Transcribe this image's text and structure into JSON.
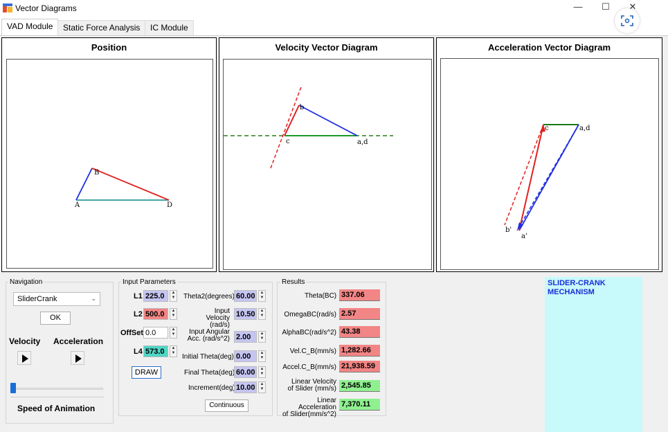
{
  "window": {
    "title": "Vector Diagrams",
    "minimize_glyph": "—",
    "maximize_glyph": "☐",
    "close_glyph": "✕"
  },
  "tabs": [
    {
      "label": "VAD Module",
      "active": true
    },
    {
      "label": "Static Force Analysis",
      "active": false
    },
    {
      "label": "IC Module",
      "active": false
    }
  ],
  "panels": {
    "position": {
      "title": "Position",
      "points": {
        "A": "A",
        "B": "B",
        "D": "D"
      }
    },
    "velocity": {
      "title": "Velocity Vector Diagram",
      "points": {
        "b": "b",
        "c": "c",
        "ad": "a,d"
      }
    },
    "acceleration": {
      "title": "Acceleration Vector Diagram",
      "points": {
        "c": "c",
        "ad": "a,d",
        "bp": "b'",
        "ap": "a'"
      }
    }
  },
  "navigation": {
    "label": "Navigation",
    "mechanism_selected": "SliderCrank",
    "ok_label": "OK",
    "velocity_label": "Velocity",
    "acceleration_label": "Acceleration",
    "speed_label": "Speed of Animation",
    "speed_level": 0
  },
  "input_parameters": {
    "label": "Input Parameters",
    "L1": {
      "label": "L1",
      "value": "225.0",
      "color": "#c5c5f2"
    },
    "L2": {
      "label": "L2",
      "value": "500.0",
      "color": "#f28585"
    },
    "offset": {
      "label": "OffSet",
      "value": "0.0",
      "color": "#ffffff"
    },
    "L4": {
      "label": "L4",
      "value": "573.0",
      "color": "#4fd6c6"
    },
    "theta2": {
      "label": "Theta2(degrees)",
      "value": "60.00"
    },
    "input_velocity": {
      "label1": "Input Velocity",
      "label2": "(rad/s)",
      "value": "10.50"
    },
    "input_acc": {
      "label1": "Input Angular",
      "label2": "Acc. (rad/s^2)",
      "value": "2.00"
    },
    "initial_theta": {
      "label": "Initial Theta(deg)",
      "value": "0.00"
    },
    "final_theta": {
      "label": "Final Theta(deg)",
      "value": "60.00"
    },
    "increment": {
      "label": "Increment(deg)",
      "value": "10.00"
    },
    "draw_label": "DRAW",
    "continuous_label": "Continuous",
    "spin_color": "#c5c5f2"
  },
  "results": {
    "label": "Results",
    "theta_bc": {
      "label": "Theta(BC)",
      "value": "337.06"
    },
    "omega_bc": {
      "label": "OmegaBC(rad/s)",
      "value": "2.57"
    },
    "alpha_bc": {
      "label": "AlphaBC(rad/s^2)",
      "value": "43.38"
    },
    "vel_cb": {
      "label": "Vel.C_B(mm/s)",
      "value": "1,282.66"
    },
    "accel_cb": {
      "label": "Accel.C_B(mm/s)",
      "value": "21,938.59"
    },
    "lin_vel": {
      "label1": "Linear Velocity",
      "label2": "of Slider (mm/s)",
      "value": "2,545.85"
    },
    "lin_acc": {
      "label1": "Linear Acceleration",
      "label2": "of Slider(mm/s^2)",
      "value": "7,370.11"
    },
    "red_color": "#f28585",
    "green_color": "#8ff08f"
  },
  "info_panel": {
    "text": "SLIDER-CRANK MECHANISM",
    "bg_color": "#c8f9fb",
    "text_color": "#1a2fd6"
  }
}
